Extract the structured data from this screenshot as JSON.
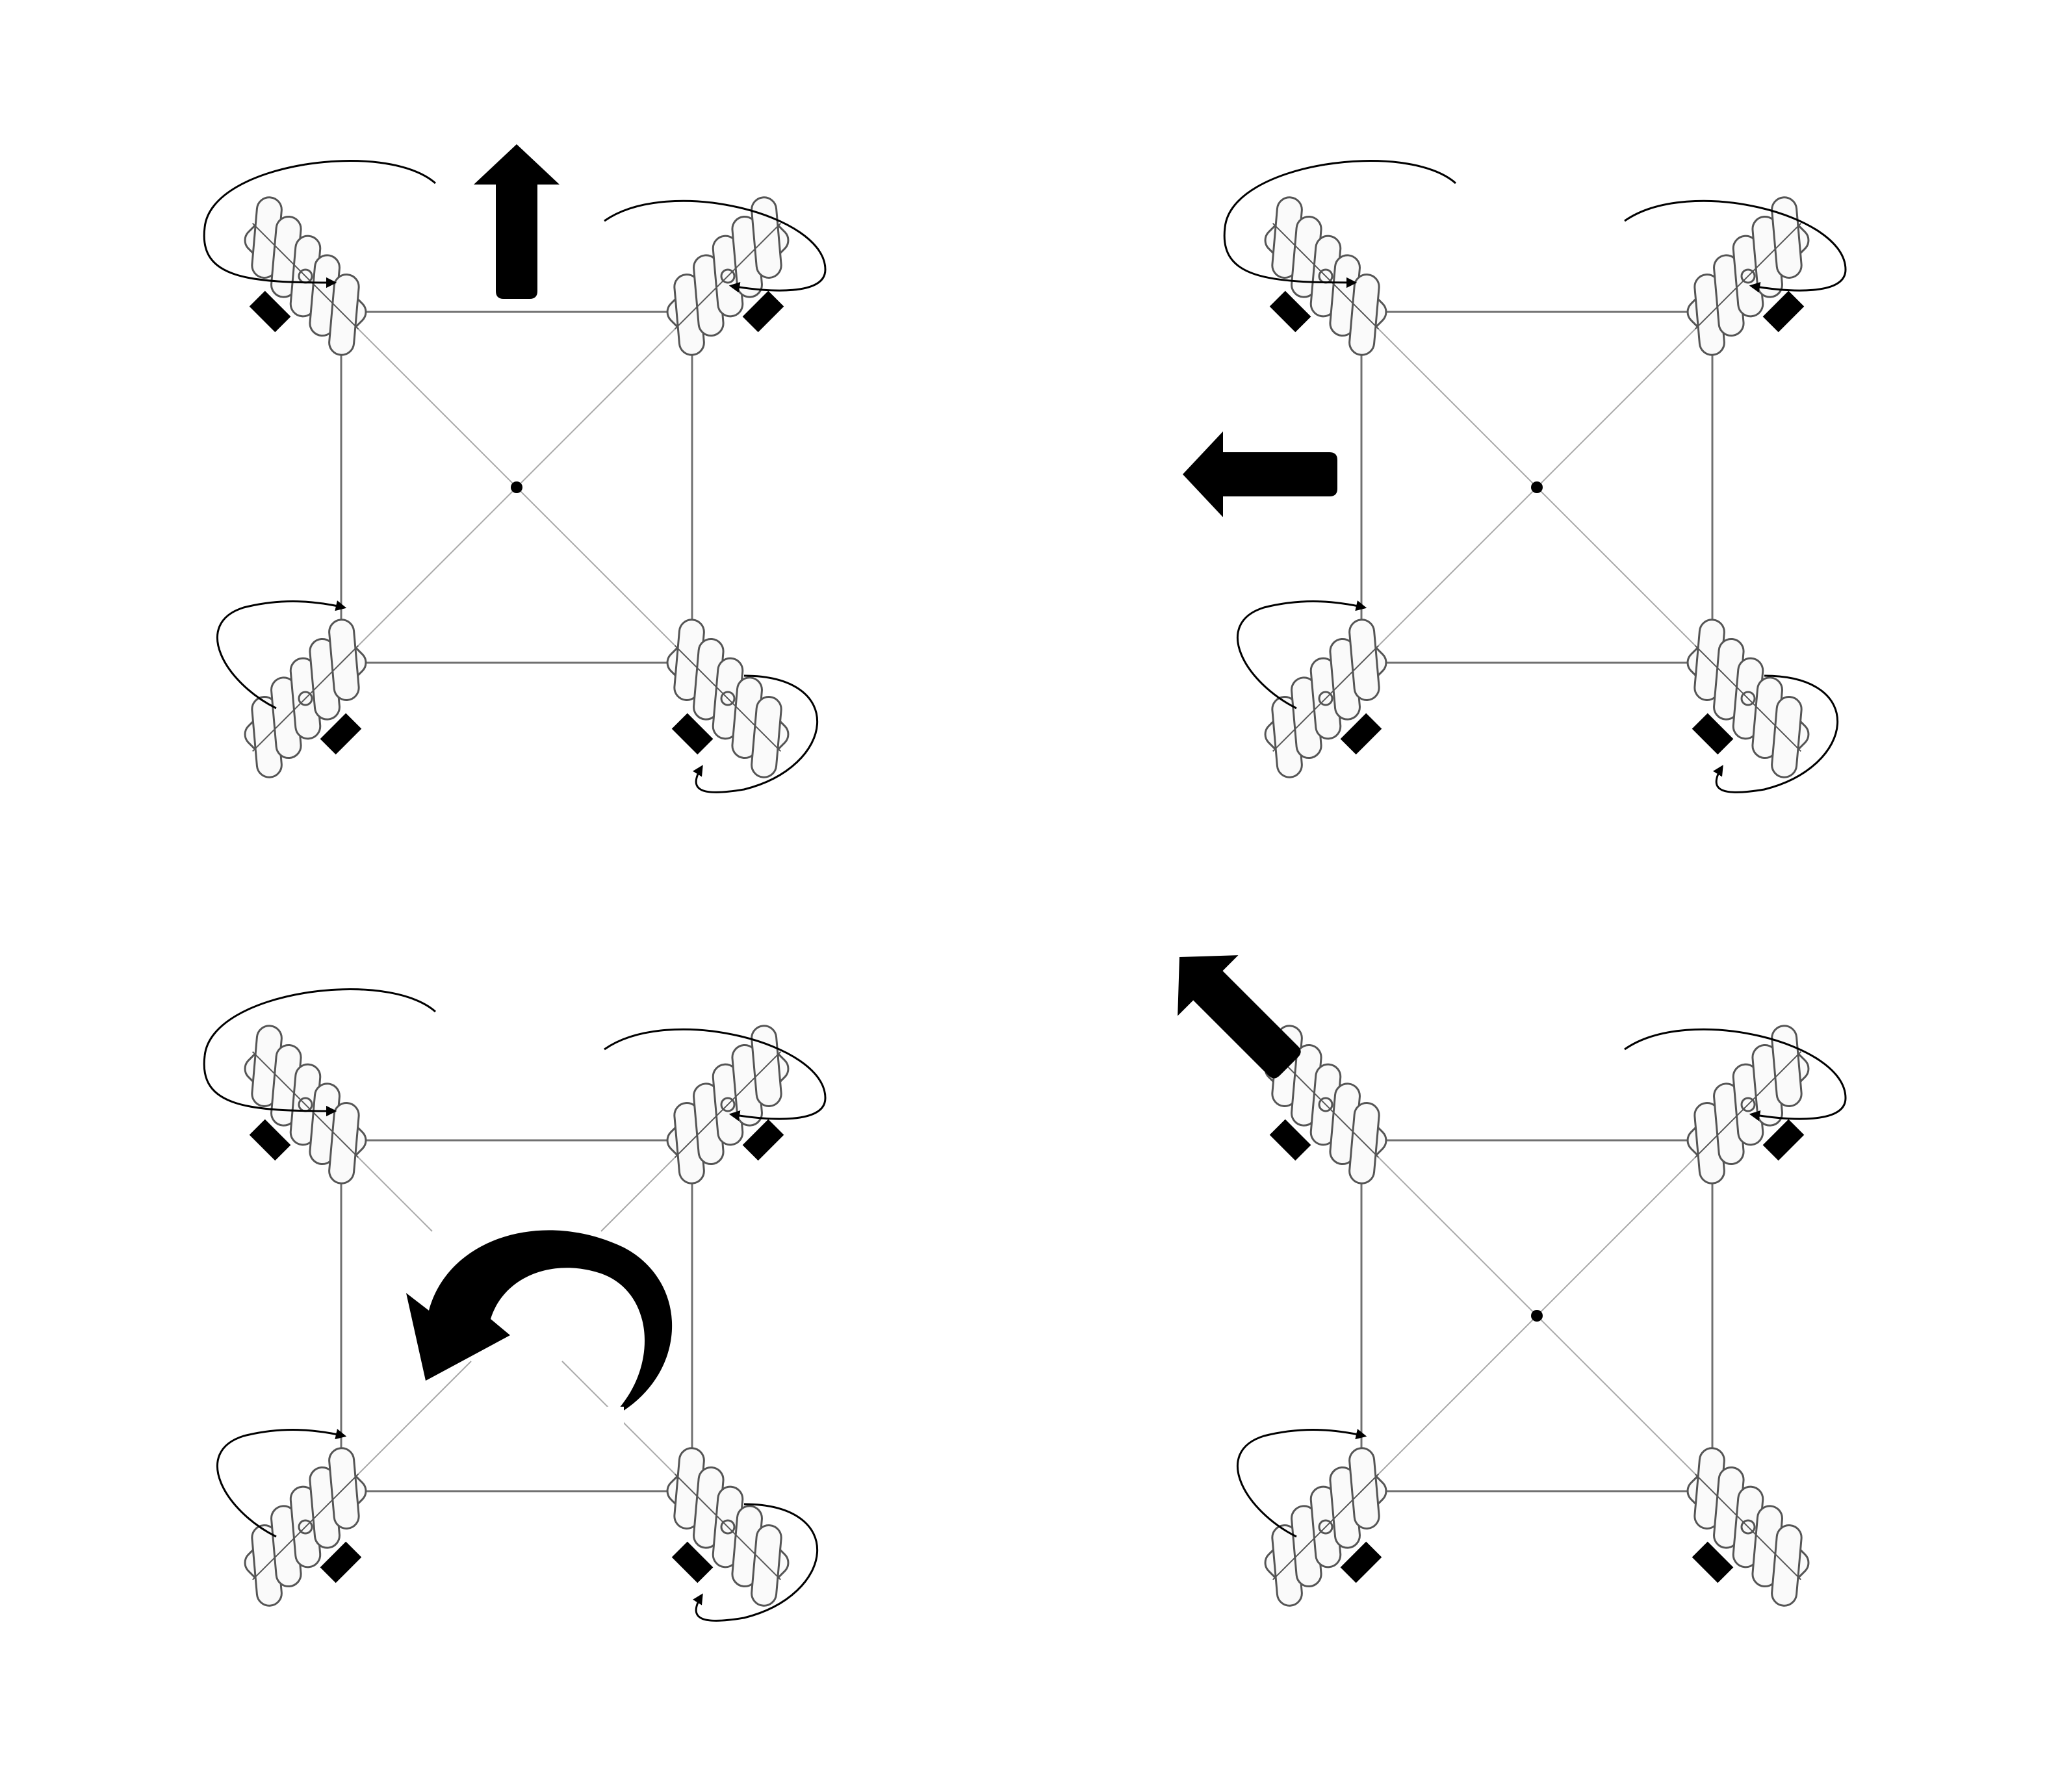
{
  "diagram": {
    "colors": {
      "ink": "#000000",
      "frame": "#707070",
      "diag": "#a8a8a8",
      "paper": "#ffffff",
      "wheel_fill": "#fafafa",
      "wheel_line": "#555555"
    },
    "panels": [
      {
        "id": "forward",
        "motion": "forward",
        "motion_icon": "arrow-up-icon",
        "center_dot": true,
        "wheels": [
          {
            "corner": "front-left",
            "roller_direction": "nw-se",
            "rotation_arrow": "top-left"
          },
          {
            "corner": "front-right",
            "roller_direction": "ne-sw",
            "rotation_arrow": "top-right"
          },
          {
            "corner": "rear-left",
            "roller_direction": "ne-sw",
            "rotation_arrow": "bottom-left"
          },
          {
            "corner": "rear-right",
            "roller_direction": "nw-se",
            "rotation_arrow": "bottom-right"
          }
        ]
      },
      {
        "id": "strafe-left",
        "motion": "left",
        "motion_icon": "arrow-left-icon",
        "center_dot": true,
        "wheels": [
          {
            "corner": "front-left",
            "roller_direction": "nw-se",
            "rotation_arrow": "top-left"
          },
          {
            "corner": "front-right",
            "roller_direction": "ne-sw",
            "rotation_arrow": "top-right"
          },
          {
            "corner": "rear-left",
            "roller_direction": "ne-sw",
            "rotation_arrow": "bottom-left"
          },
          {
            "corner": "rear-right",
            "roller_direction": "nw-se",
            "rotation_arrow": "bottom-right"
          }
        ]
      },
      {
        "id": "rotate-ccw",
        "motion": "rotate-counterclockwise",
        "motion_icon": "rotate-ccw-icon",
        "center_dot": false,
        "wheels": [
          {
            "corner": "front-left",
            "roller_direction": "nw-se",
            "rotation_arrow": "top-left"
          },
          {
            "corner": "front-right",
            "roller_direction": "ne-sw",
            "rotation_arrow": "top-right"
          },
          {
            "corner": "rear-left",
            "roller_direction": "ne-sw",
            "rotation_arrow": "bottom-left"
          },
          {
            "corner": "rear-right",
            "roller_direction": "nw-se",
            "rotation_arrow": "bottom-right"
          }
        ]
      },
      {
        "id": "diagonal-front-left",
        "motion": "diagonal-up-left",
        "motion_icon": "arrow-up-left-icon",
        "center_dot": true,
        "wheels": [
          {
            "corner": "front-left",
            "roller_direction": "nw-se",
            "rotation_arrow": "none"
          },
          {
            "corner": "front-right",
            "roller_direction": "ne-sw",
            "rotation_arrow": "top-right"
          },
          {
            "corner": "rear-left",
            "roller_direction": "ne-sw",
            "rotation_arrow": "bottom-left"
          },
          {
            "corner": "rear-right",
            "roller_direction": "nw-se",
            "rotation_arrow": "none"
          }
        ]
      }
    ]
  }
}
